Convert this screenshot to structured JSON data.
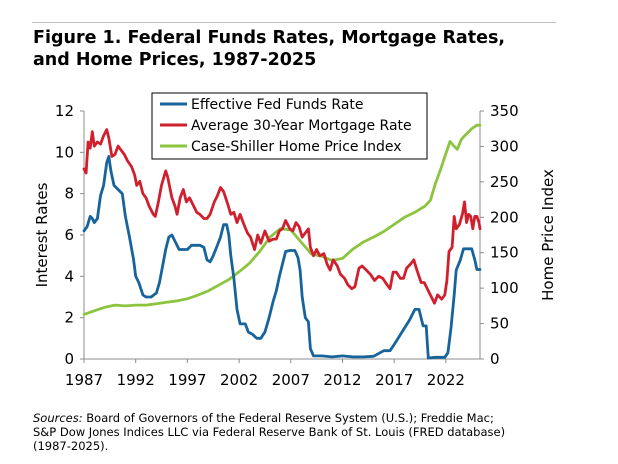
{
  "figure": {
    "title_line1": "Figure 1. Federal Funds Rates, Mortgage Rates,",
    "title_line2": "and Home Prices, 1987-2025"
  },
  "sources": {
    "label": "Sources:",
    "line1": " Board of Governors of the Federal Reserve System (U.S.); Freddie Mac;",
    "line2": "S&P Dow Jones Indices LLC via Federal Reserve Bank of St. Louis (FRED database)",
    "line3": "(1987-2025)."
  },
  "chart_data": {
    "type": "line",
    "title": "Figure 1. Federal Funds Rates, Mortgage Rates, and Home Prices, 1987-2025",
    "xlabel": "",
    "ylabel": "Interest Rates",
    "y2label": "Home Price Index",
    "xlim": [
      1987,
      2025.3
    ],
    "ylim": [
      0,
      12
    ],
    "y2lim": [
      0,
      350
    ],
    "xticks": [
      1987,
      1992,
      1997,
      2002,
      2007,
      2012,
      2017,
      2022
    ],
    "yticks": [
      0,
      2,
      4,
      6,
      8,
      10,
      12
    ],
    "y2ticks": [
      0,
      50,
      100,
      150,
      200,
      250,
      300,
      350
    ],
    "grid": false,
    "legend_position": "top-center",
    "series": [
      {
        "name": "Effective Fed Funds Rate",
        "axis": "left",
        "color": "#17639b",
        "points": [
          [
            1987,
            6.2
          ],
          [
            1987.3,
            6.4
          ],
          [
            1987.6,
            6.9
          ],
          [
            1987.8,
            6.8
          ],
          [
            1988,
            6.6
          ],
          [
            1988.3,
            6.8
          ],
          [
            1988.6,
            7.9
          ],
          [
            1988.9,
            8.4
          ],
          [
            1989.2,
            9.5
          ],
          [
            1989.4,
            9.8
          ],
          [
            1989.6,
            9.1
          ],
          [
            1989.9,
            8.4
          ],
          [
            1990.3,
            8.2
          ],
          [
            1990.7,
            8.0
          ],
          [
            1991,
            6.9
          ],
          [
            1991.4,
            5.9
          ],
          [
            1991.8,
            4.8
          ],
          [
            1992,
            4.0
          ],
          [
            1992.3,
            3.7
          ],
          [
            1992.7,
            3.1
          ],
          [
            1993,
            3.0
          ],
          [
            1993.5,
            3.0
          ],
          [
            1994,
            3.2
          ],
          [
            1994.3,
            3.7
          ],
          [
            1994.6,
            4.5
          ],
          [
            1994.9,
            5.3
          ],
          [
            1995.2,
            5.9
          ],
          [
            1995.5,
            6.0
          ],
          [
            1995.8,
            5.7
          ],
          [
            1996.2,
            5.3
          ],
          [
            1996.6,
            5.3
          ],
          [
            1997,
            5.3
          ],
          [
            1997.4,
            5.5
          ],
          [
            1997.8,
            5.5
          ],
          [
            1998.2,
            5.5
          ],
          [
            1998.6,
            5.4
          ],
          [
            1998.9,
            4.8
          ],
          [
            1999.2,
            4.7
          ],
          [
            1999.5,
            5.0
          ],
          [
            1999.9,
            5.5
          ],
          [
            2000.2,
            5.9
          ],
          [
            2000.5,
            6.5
          ],
          [
            2000.8,
            6.5
          ],
          [
            2001.0,
            6.0
          ],
          [
            2001.2,
            5.0
          ],
          [
            2001.5,
            3.9
          ],
          [
            2001.8,
            2.4
          ],
          [
            2002.1,
            1.7
          ],
          [
            2002.6,
            1.7
          ],
          [
            2002.9,
            1.3
          ],
          [
            2003.3,
            1.2
          ],
          [
            2003.7,
            1.0
          ],
          [
            2004.1,
            1.0
          ],
          [
            2004.5,
            1.3
          ],
          [
            2004.9,
            2.0
          ],
          [
            2005.3,
            2.8
          ],
          [
            2005.6,
            3.3
          ],
          [
            2005.9,
            4.0
          ],
          [
            2006.2,
            4.6
          ],
          [
            2006.5,
            5.2
          ],
          [
            2006.9,
            5.25
          ],
          [
            2007.4,
            5.25
          ],
          [
            2007.7,
            4.9
          ],
          [
            2007.9,
            4.3
          ],
          [
            2008.1,
            3.0
          ],
          [
            2008.4,
            2.0
          ],
          [
            2008.7,
            1.8
          ],
          [
            2008.9,
            0.5
          ],
          [
            2009.2,
            0.15
          ],
          [
            2010,
            0.15
          ],
          [
            2011,
            0.1
          ],
          [
            2012,
            0.15
          ],
          [
            2013,
            0.1
          ],
          [
            2014,
            0.1
          ],
          [
            2015,
            0.13
          ],
          [
            2016,
            0.4
          ],
          [
            2016.6,
            0.4
          ],
          [
            2017,
            0.7
          ],
          [
            2017.5,
            1.1
          ],
          [
            2018,
            1.5
          ],
          [
            2018.5,
            1.9
          ],
          [
            2019,
            2.4
          ],
          [
            2019.4,
            2.4
          ],
          [
            2019.8,
            1.6
          ],
          [
            2020.1,
            1.6
          ],
          [
            2020.3,
            0.05
          ],
          [
            2021,
            0.08
          ],
          [
            2021.9,
            0.08
          ],
          [
            2022.2,
            0.3
          ],
          [
            2022.5,
            1.5
          ],
          [
            2022.8,
            3.1
          ],
          [
            2023.0,
            4.3
          ],
          [
            2023.4,
            4.8
          ],
          [
            2023.7,
            5.33
          ],
          [
            2024.5,
            5.33
          ],
          [
            2024.8,
            4.8
          ],
          [
            2025.0,
            4.33
          ],
          [
            2025.3,
            4.33
          ]
        ]
      },
      {
        "name": "Average 30-Year Mortgage Rate",
        "axis": "left",
        "color": "#d0202e",
        "points": [
          [
            1987,
            9.2
          ],
          [
            1987.2,
            9.0
          ],
          [
            1987.4,
            10.5
          ],
          [
            1987.6,
            10.2
          ],
          [
            1987.8,
            11.0
          ],
          [
            1988,
            10.3
          ],
          [
            1988.3,
            10.5
          ],
          [
            1988.6,
            10.4
          ],
          [
            1988.9,
            10.8
          ],
          [
            1989.2,
            11.1
          ],
          [
            1989.4,
            10.7
          ],
          [
            1989.7,
            9.8
          ],
          [
            1990,
            9.9
          ],
          [
            1990.3,
            10.3
          ],
          [
            1990.6,
            10.1
          ],
          [
            1990.9,
            9.9
          ],
          [
            1991.2,
            9.6
          ],
          [
            1991.6,
            9.3
          ],
          [
            1991.9,
            8.9
          ],
          [
            1992.1,
            8.4
          ],
          [
            1992.4,
            8.6
          ],
          [
            1992.7,
            8.0
          ],
          [
            1993,
            7.8
          ],
          [
            1993.3,
            7.4
          ],
          [
            1993.7,
            7.0
          ],
          [
            1993.9,
            6.9
          ],
          [
            1994.2,
            7.6
          ],
          [
            1994.5,
            8.4
          ],
          [
            1994.9,
            9.1
          ],
          [
            1995.1,
            8.8
          ],
          [
            1995.5,
            7.8
          ],
          [
            1995.8,
            7.4
          ],
          [
            1996,
            7.0
          ],
          [
            1996.3,
            7.8
          ],
          [
            1996.6,
            8.2
          ],
          [
            1996.9,
            7.6
          ],
          [
            1997.2,
            7.8
          ],
          [
            1997.5,
            7.5
          ],
          [
            1997.9,
            7.1
          ],
          [
            1998.2,
            7.0
          ],
          [
            1998.6,
            6.8
          ],
          [
            1998.9,
            6.8
          ],
          [
            1999.2,
            7.0
          ],
          [
            1999.6,
            7.6
          ],
          [
            1999.9,
            7.9
          ],
          [
            2000.2,
            8.3
          ],
          [
            2000.5,
            8.1
          ],
          [
            2000.9,
            7.5
          ],
          [
            2001.2,
            7.0
          ],
          [
            2001.5,
            7.1
          ],
          [
            2001.8,
            6.6
          ],
          [
            2002.1,
            7.0
          ],
          [
            2002.4,
            6.6
          ],
          [
            2002.8,
            6.1
          ],
          [
            2003.1,
            5.9
          ],
          [
            2003.5,
            5.3
          ],
          [
            2003.8,
            6.0
          ],
          [
            2004.1,
            5.6
          ],
          [
            2004.5,
            6.2
          ],
          [
            2004.9,
            5.7
          ],
          [
            2005.3,
            5.8
          ],
          [
            2005.6,
            5.8
          ],
          [
            2005.9,
            6.2
          ],
          [
            2006.2,
            6.3
          ],
          [
            2006.5,
            6.7
          ],
          [
            2006.9,
            6.3
          ],
          [
            2007.2,
            6.2
          ],
          [
            2007.5,
            6.6
          ],
          [
            2007.8,
            6.4
          ],
          [
            2008.1,
            5.9
          ],
          [
            2008.4,
            6.1
          ],
          [
            2008.7,
            6.3
          ],
          [
            2008.9,
            5.4
          ],
          [
            2009.2,
            5.0
          ],
          [
            2009.5,
            5.3
          ],
          [
            2009.8,
            5.0
          ],
          [
            2010.2,
            5.1
          ],
          [
            2010.5,
            4.6
          ],
          [
            2010.8,
            4.3
          ],
          [
            2011.1,
            4.8
          ],
          [
            2011.5,
            4.5
          ],
          [
            2011.8,
            4.1
          ],
          [
            2012.2,
            3.9
          ],
          [
            2012.5,
            3.6
          ],
          [
            2012.9,
            3.4
          ],
          [
            2013.2,
            3.5
          ],
          [
            2013.6,
            4.4
          ],
          [
            2013.9,
            4.5
          ],
          [
            2014.3,
            4.3
          ],
          [
            2014.7,
            4.1
          ],
          [
            2015.1,
            3.8
          ],
          [
            2015.5,
            4.0
          ],
          [
            2015.9,
            3.9
          ],
          [
            2016.3,
            3.6
          ],
          [
            2016.6,
            3.4
          ],
          [
            2016.9,
            4.2
          ],
          [
            2017.2,
            4.2
          ],
          [
            2017.6,
            3.9
          ],
          [
            2017.9,
            3.9
          ],
          [
            2018.2,
            4.4
          ],
          [
            2018.6,
            4.6
          ],
          [
            2018.9,
            4.8
          ],
          [
            2019.2,
            4.3
          ],
          [
            2019.6,
            3.7
          ],
          [
            2019.9,
            3.7
          ],
          [
            2020.2,
            3.4
          ],
          [
            2020.6,
            3.0
          ],
          [
            2020.9,
            2.7
          ],
          [
            2021.2,
            3.1
          ],
          [
            2021.6,
            2.9
          ],
          [
            2021.9,
            3.1
          ],
          [
            2022.1,
            3.8
          ],
          [
            2022.3,
            5.2
          ],
          [
            2022.6,
            5.4
          ],
          [
            2022.8,
            6.9
          ],
          [
            2023.0,
            6.3
          ],
          [
            2023.3,
            6.5
          ],
          [
            2023.6,
            7.0
          ],
          [
            2023.8,
            7.6
          ],
          [
            2024.0,
            6.6
          ],
          [
            2024.2,
            7.0
          ],
          [
            2024.4,
            6.9
          ],
          [
            2024.6,
            6.3
          ],
          [
            2024.8,
            6.9
          ],
          [
            2025.0,
            6.9
          ],
          [
            2025.2,
            6.6
          ],
          [
            2025.3,
            6.3
          ]
        ]
      },
      {
        "name": "Case-Shiller Home Price Index",
        "axis": "right",
        "color": "#8cc43f",
        "points": [
          [
            1987,
            63
          ],
          [
            1988,
            68
          ],
          [
            1989,
            73
          ],
          [
            1990,
            76
          ],
          [
            1991,
            75
          ],
          [
            1992,
            76
          ],
          [
            1993,
            76
          ],
          [
            1994,
            78
          ],
          [
            1995,
            80
          ],
          [
            1996,
            82
          ],
          [
            1997,
            85
          ],
          [
            1998,
            90
          ],
          [
            1999,
            96
          ],
          [
            2000,
            104
          ],
          [
            2001,
            112
          ],
          [
            2002,
            123
          ],
          [
            2003,
            135
          ],
          [
            2004,
            152
          ],
          [
            2005,
            172
          ],
          [
            2006,
            184
          ],
          [
            2007,
            182
          ],
          [
            2008,
            165
          ],
          [
            2009,
            148
          ],
          [
            2010,
            145
          ],
          [
            2011,
            139
          ],
          [
            2012,
            142
          ],
          [
            2013,
            155
          ],
          [
            2014,
            165
          ],
          [
            2015,
            172
          ],
          [
            2016,
            180
          ],
          [
            2017,
            190
          ],
          [
            2018,
            200
          ],
          [
            2019,
            207
          ],
          [
            2020,
            216
          ],
          [
            2020.5,
            224
          ],
          [
            2021,
            248
          ],
          [
            2021.5,
            268
          ],
          [
            2022,
            290
          ],
          [
            2022.4,
            307
          ],
          [
            2022.8,
            300
          ],
          [
            2023.1,
            296
          ],
          [
            2023.5,
            310
          ],
          [
            2024,
            318
          ],
          [
            2024.5,
            325
          ],
          [
            2025,
            330
          ],
          [
            2025.3,
            330
          ]
        ]
      }
    ]
  }
}
